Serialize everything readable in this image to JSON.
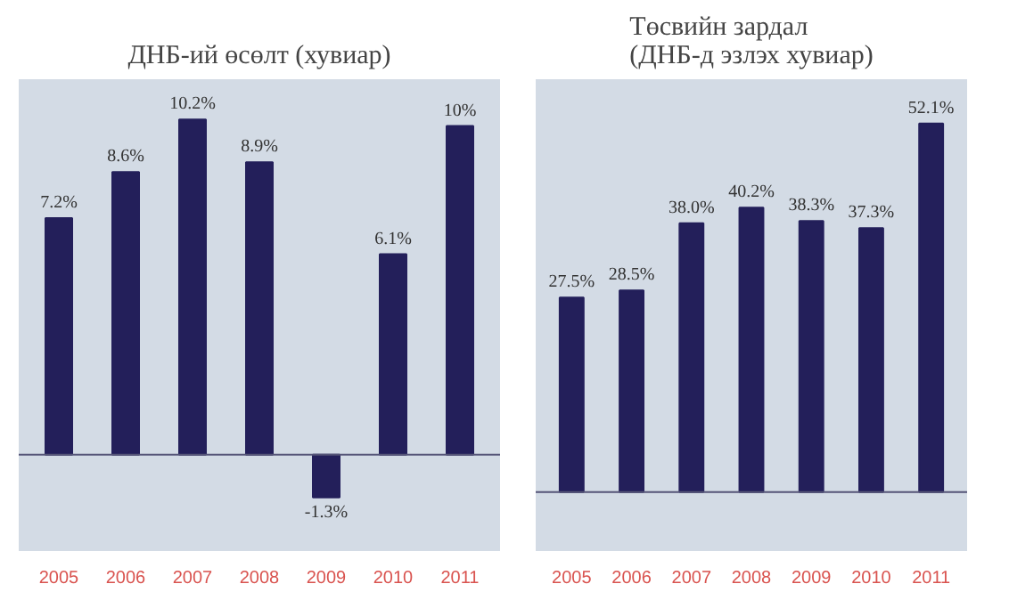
{
  "chart_data": [
    {
      "type": "bar",
      "title": "ДНБ-ий өсөлт (хувиар)",
      "categories": [
        "2005",
        "2006",
        "2007",
        "2008",
        "2009",
        "2010",
        "2011"
      ],
      "values": [
        7.2,
        8.6,
        10.2,
        8.9,
        -1.3,
        6.1,
        10
      ],
      "value_labels": [
        "7.2%",
        "8.6%",
        "10.2%",
        "8.9%",
        "-1.3%",
        "6.1%",
        "10%"
      ],
      "color": "#231f5a",
      "tick_labels": "x"
    },
    {
      "type": "bar",
      "title": "Төсвийн зардал\n(ДНБ-д эзлэх хувиар)",
      "categories": [
        "2005",
        "2006",
        "2007",
        "2008",
        "2009",
        "2010",
        "2011"
      ],
      "values": [
        27.5,
        28.5,
        38.0,
        40.2,
        38.3,
        37.3,
        52.1
      ],
      "value_labels": [
        "27.5%",
        "28.5%",
        "38.0%",
        "40.2%",
        "38.3%",
        "37.3%",
        "52.1%"
      ],
      "color": "#231f5a",
      "tick_labels": "x"
    }
  ]
}
